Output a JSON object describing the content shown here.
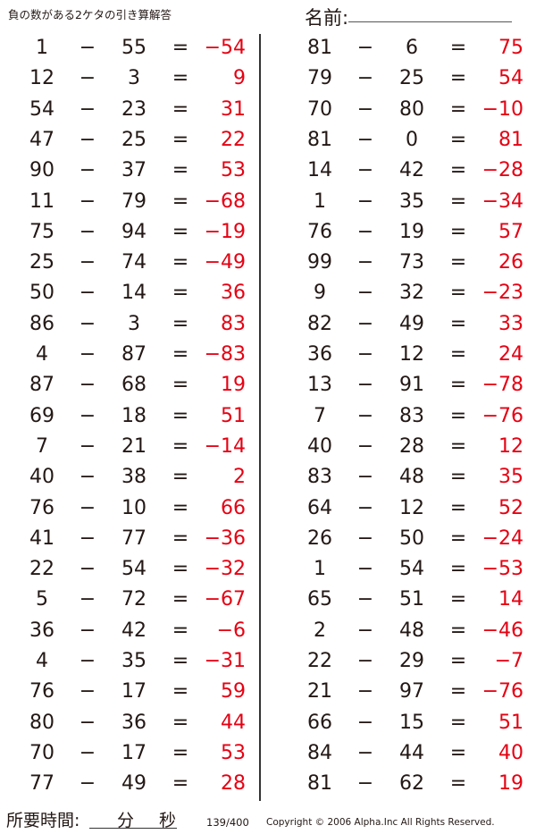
{
  "header": {
    "title": "負の数がある2ケタの引き算解答",
    "name_label": "名前:"
  },
  "operator": "−",
  "equals": "=",
  "answer_color": "#e60012",
  "left": [
    {
      "a": "1",
      "b": "55",
      "ans": "−54"
    },
    {
      "a": "12",
      "b": "3",
      "ans": "9"
    },
    {
      "a": "54",
      "b": "23",
      "ans": "31"
    },
    {
      "a": "47",
      "b": "25",
      "ans": "22"
    },
    {
      "a": "90",
      "b": "37",
      "ans": "53"
    },
    {
      "a": "11",
      "b": "79",
      "ans": "−68"
    },
    {
      "a": "75",
      "b": "94",
      "ans": "−19"
    },
    {
      "a": "25",
      "b": "74",
      "ans": "−49"
    },
    {
      "a": "50",
      "b": "14",
      "ans": "36"
    },
    {
      "a": "86",
      "b": "3",
      "ans": "83"
    },
    {
      "a": "4",
      "b": "87",
      "ans": "−83"
    },
    {
      "a": "87",
      "b": "68",
      "ans": "19"
    },
    {
      "a": "69",
      "b": "18",
      "ans": "51"
    },
    {
      "a": "7",
      "b": "21",
      "ans": "−14"
    },
    {
      "a": "40",
      "b": "38",
      "ans": "2"
    },
    {
      "a": "76",
      "b": "10",
      "ans": "66"
    },
    {
      "a": "41",
      "b": "77",
      "ans": "−36"
    },
    {
      "a": "22",
      "b": "54",
      "ans": "−32"
    },
    {
      "a": "5",
      "b": "72",
      "ans": "−67"
    },
    {
      "a": "36",
      "b": "42",
      "ans": "−6"
    },
    {
      "a": "4",
      "b": "35",
      "ans": "−31"
    },
    {
      "a": "76",
      "b": "17",
      "ans": "59"
    },
    {
      "a": "80",
      "b": "36",
      "ans": "44"
    },
    {
      "a": "70",
      "b": "17",
      "ans": "53"
    },
    {
      "a": "77",
      "b": "49",
      "ans": "28"
    }
  ],
  "right": [
    {
      "a": "81",
      "b": "6",
      "ans": "75"
    },
    {
      "a": "79",
      "b": "25",
      "ans": "54"
    },
    {
      "a": "70",
      "b": "80",
      "ans": "−10"
    },
    {
      "a": "81",
      "b": "0",
      "ans": "81"
    },
    {
      "a": "14",
      "b": "42",
      "ans": "−28"
    },
    {
      "a": "1",
      "b": "35",
      "ans": "−34"
    },
    {
      "a": "76",
      "b": "19",
      "ans": "57"
    },
    {
      "a": "99",
      "b": "73",
      "ans": "26"
    },
    {
      "a": "9",
      "b": "32",
      "ans": "−23"
    },
    {
      "a": "82",
      "b": "49",
      "ans": "33"
    },
    {
      "a": "36",
      "b": "12",
      "ans": "24"
    },
    {
      "a": "13",
      "b": "91",
      "ans": "−78"
    },
    {
      "a": "7",
      "b": "83",
      "ans": "−76"
    },
    {
      "a": "40",
      "b": "28",
      "ans": "12"
    },
    {
      "a": "83",
      "b": "48",
      "ans": "35"
    },
    {
      "a": "64",
      "b": "12",
      "ans": "52"
    },
    {
      "a": "26",
      "b": "50",
      "ans": "−24"
    },
    {
      "a": "1",
      "b": "54",
      "ans": "−53"
    },
    {
      "a": "65",
      "b": "51",
      "ans": "14"
    },
    {
      "a": "2",
      "b": "48",
      "ans": "−46"
    },
    {
      "a": "22",
      "b": "29",
      "ans": "−7"
    },
    {
      "a": "21",
      "b": "97",
      "ans": "−76"
    },
    {
      "a": "66",
      "b": "15",
      "ans": "51"
    },
    {
      "a": "84",
      "b": "44",
      "ans": "40"
    },
    {
      "a": "81",
      "b": "62",
      "ans": "19"
    }
  ],
  "footer": {
    "time_label": "所要時間:",
    "minutes": "分",
    "seconds": "秒",
    "page": "139/400",
    "copyright": "Copyright © 2006 Alpha.Inc All Rights Reserved."
  }
}
